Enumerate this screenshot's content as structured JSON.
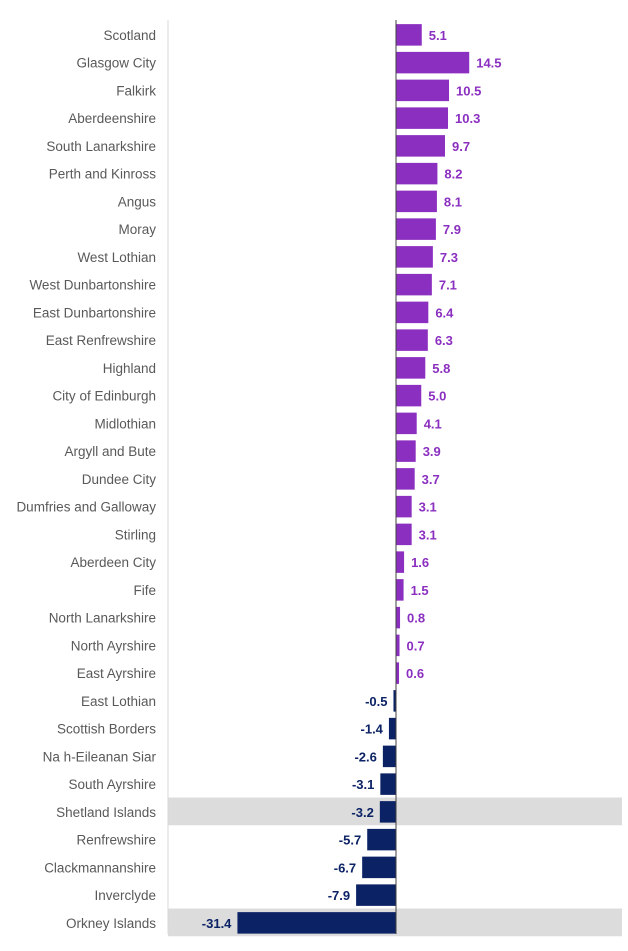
{
  "chart_data": {
    "type": "bar",
    "orientation": "horizontal",
    "categories": [
      "Scotland",
      "Glasgow City",
      "Falkirk",
      "Aberdeenshire",
      "South Lanarkshire",
      "Perth and Kinross",
      "Angus",
      "Moray",
      "West Lothian",
      "West Dunbartonshire",
      "East Dunbartonshire",
      "East Renfrewshire",
      "Highland",
      "City of Edinburgh",
      "Midlothian",
      "Argyll and Bute",
      "Dundee City",
      "Dumfries and Galloway",
      "Stirling",
      "Aberdeen City",
      "Fife",
      "North Lanarkshire",
      "North Ayrshire",
      "East Ayrshire",
      "East Lothian",
      "Scottish Borders",
      "Na h-Eileanan Siar",
      "South Ayrshire",
      "Shetland Islands",
      "Renfrewshire",
      "Clackmannanshire",
      "Inverclyde",
      "Orkney Islands"
    ],
    "values": [
      5.1,
      14.5,
      10.5,
      10.3,
      9.7,
      8.2,
      8.1,
      7.9,
      7.3,
      7.1,
      6.4,
      6.3,
      5.8,
      5.0,
      4.1,
      3.9,
      3.7,
      3.1,
      3.1,
      1.6,
      1.5,
      0.8,
      0.7,
      0.6,
      -0.5,
      -1.4,
      -2.6,
      -3.1,
      -3.2,
      -5.7,
      -6.7,
      -7.9,
      -31.4
    ],
    "value_labels": [
      "5.1",
      "14.5",
      "10.5",
      "10.3",
      "9.7",
      "8.2",
      "8.1",
      "7.9",
      "7.3",
      "7.1",
      "6.4",
      "6.3",
      "5.8",
      "5.0",
      "4.1",
      "3.9",
      "3.7",
      "3.1",
      "3.1",
      "1.6",
      "1.5",
      "0.8",
      "0.7",
      "0.6",
      "-0.5",
      "-1.4",
      "-2.6",
      "-3.1",
      "-3.2",
      "-5.7",
      "-6.7",
      "-7.9",
      "-31.4"
    ],
    "highlighted_categories": [
      "Shetland Islands",
      "Orkney Islands"
    ],
    "colors": {
      "positive": "#8b2fc0",
      "negative": "#0b2265",
      "highlight_band": "#dcdcdc",
      "axis": "#404040",
      "category_axis": "#d9d9d9",
      "category_text": "#595959"
    },
    "xlim": [
      -32,
      18
    ],
    "grid": false,
    "legend": "none"
  }
}
